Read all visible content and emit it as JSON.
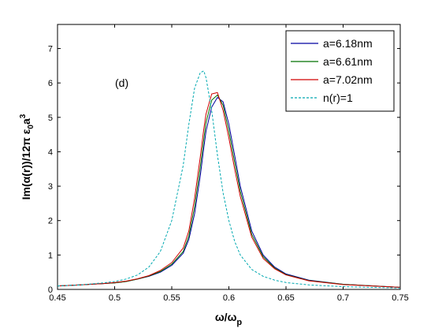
{
  "chart_data": {
    "type": "line",
    "title": "",
    "xlim": [
      0.45,
      0.75
    ],
    "ylim": [
      0,
      7.7
    ],
    "xticks": [
      "0.45",
      "0.5",
      "0.55",
      "0.6",
      "0.65",
      "0.7",
      "0.75"
    ],
    "yticks": [
      "0",
      "1",
      "2",
      "3",
      "4",
      "5",
      "6",
      "7"
    ],
    "xlabel": {
      "main": "ω/ω",
      "sub": "p"
    },
    "ylabel": {
      "main": "Im(α(r))/12π ε",
      "sub": "0",
      "tail": "a",
      "sup": "3"
    },
    "annotation": "(d)",
    "legend_position": "top-right",
    "grid": false,
    "x": [
      0.45,
      0.47,
      0.49,
      0.5,
      0.51,
      0.52,
      0.53,
      0.54,
      0.55,
      0.56,
      0.565,
      0.57,
      0.575,
      0.578,
      0.58,
      0.585,
      0.59,
      0.595,
      0.6,
      0.605,
      0.61,
      0.62,
      0.63,
      0.64,
      0.65,
      0.67,
      0.7,
      0.75
    ],
    "series": [
      {
        "name": "a=6.18nm",
        "color": "#0000a0",
        "dash": "solid",
        "values": [
          0.1,
          0.13,
          0.17,
          0.19,
          0.23,
          0.3,
          0.38,
          0.5,
          0.7,
          1.05,
          1.45,
          2.2,
          3.3,
          4.1,
          4.6,
          5.3,
          5.58,
          5.45,
          4.8,
          3.9,
          3.0,
          1.7,
          1.0,
          0.65,
          0.45,
          0.27,
          0.15,
          0.06
        ]
      },
      {
        "name": "a=6.61nm",
        "color": "#007000",
        "dash": "solid",
        "values": [
          0.1,
          0.13,
          0.17,
          0.19,
          0.23,
          0.3,
          0.39,
          0.52,
          0.73,
          1.1,
          1.55,
          2.4,
          3.55,
          4.35,
          4.85,
          5.5,
          5.65,
          5.35,
          4.6,
          3.7,
          2.85,
          1.6,
          0.95,
          0.62,
          0.43,
          0.26,
          0.15,
          0.06
        ]
      },
      {
        "name": "a=7.02nm",
        "color": "#d00000",
        "dash": "solid",
        "values": [
          0.1,
          0.13,
          0.17,
          0.2,
          0.24,
          0.31,
          0.4,
          0.55,
          0.78,
          1.2,
          1.7,
          2.65,
          3.85,
          4.65,
          5.1,
          5.68,
          5.72,
          5.2,
          4.4,
          3.5,
          2.7,
          1.52,
          0.9,
          0.6,
          0.42,
          0.25,
          0.14,
          0.06
        ]
      },
      {
        "name": "n(r)=1",
        "color": "#00a8b0",
        "dash": "dashed",
        "values": [
          0.1,
          0.13,
          0.19,
          0.23,
          0.3,
          0.42,
          0.65,
          1.1,
          2.0,
          3.6,
          4.8,
          5.85,
          6.3,
          6.35,
          6.15,
          5.2,
          3.9,
          2.8,
          2.0,
          1.4,
          1.0,
          0.58,
          0.38,
          0.27,
          0.2,
          0.13,
          0.08,
          0.04
        ]
      }
    ]
  }
}
